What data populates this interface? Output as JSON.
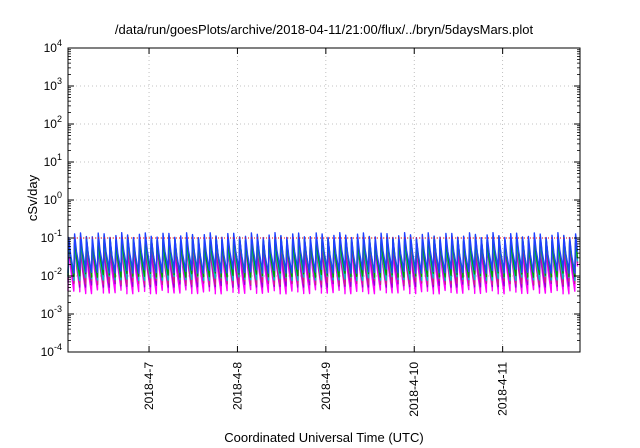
{
  "chart_data": {
    "type": "line",
    "title": "/data/run/goesPlots/archive/2018-04-11/21:00/flux/../bryn/5daysMars.plot",
    "xlabel": "Coordinated Universal Time (UTC)",
    "ylabel": "cSv/day",
    "yscale": "log",
    "ylim": [
      0.0001,
      10000
    ],
    "y_ticks": [
      {
        "base": "10",
        "exp": "-4"
      },
      {
        "base": "10",
        "exp": "-3"
      },
      {
        "base": "10",
        "exp": "-2"
      },
      {
        "base": "10",
        "exp": "-1"
      },
      {
        "base": "10",
        "exp": "0"
      },
      {
        "base": "10",
        "exp": "1"
      },
      {
        "base": "10",
        "exp": "2"
      },
      {
        "base": "10",
        "exp": "3"
      },
      {
        "base": "10",
        "exp": "4"
      }
    ],
    "x_range_days": [
      "2018-04-06T02:00",
      "2018-04-11T21:00"
    ],
    "x_ticks": [
      "2018-4-7",
      "2018-4-8",
      "2018-4-9",
      "2018-4-10",
      "2018-4-11"
    ],
    "x_tick_days": [
      "2018-04-07",
      "2018-04-08",
      "2018-04-09",
      "2018-04-10",
      "2018-04-11"
    ],
    "grid": true,
    "reference_line": {
      "value": 0.1,
      "color": "#ff0000",
      "style": "dotted"
    },
    "pattern": {
      "description": "sawtooth oscillation, rising sharply then decaying",
      "period_hours": 1.6,
      "series_colors": [
        "#ff00ff",
        "#9400d3",
        "#cc2288",
        "#00bfbf",
        "#00a000",
        "#1f3fff"
      ],
      "series_peak": [
        0.06,
        0.07,
        0.08,
        0.09,
        0.1,
        0.12
      ],
      "series_trough": [
        0.004,
        0.006,
        0.007,
        0.009,
        0.011,
        0.014
      ]
    }
  }
}
